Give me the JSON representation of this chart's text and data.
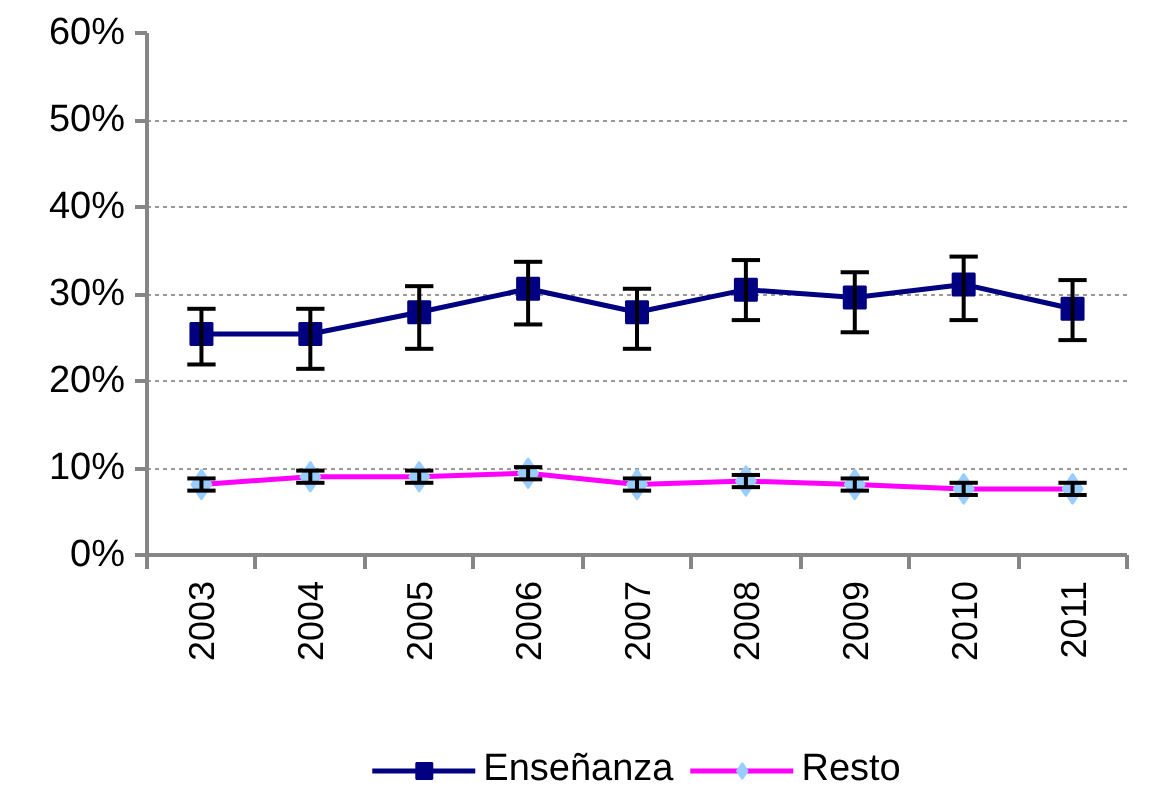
{
  "chart_data": {
    "type": "line",
    "categories": [
      "2003",
      "2004",
      "2005",
      "2006",
      "2007",
      "2008",
      "2009",
      "2010",
      "2011"
    ],
    "ylim": [
      0,
      60
    ],
    "yticks": [
      {
        "value": 0,
        "label": "0%"
      },
      {
        "value": 10,
        "label": "10%"
      },
      {
        "value": 20,
        "label": "20%"
      },
      {
        "value": 30,
        "label": "30%"
      },
      {
        "value": 40,
        "label": "40%"
      },
      {
        "value": 50,
        "label": "50%"
      },
      {
        "value": 60,
        "label": "60%"
      }
    ],
    "grid": "y",
    "legend": "bottom",
    "line_style": "solid",
    "series": [
      {
        "name": "Enseñanza",
        "color": "#000080",
        "marker": "square",
        "values": [
          25.4,
          25.4,
          27.9,
          30.6,
          27.9,
          30.5,
          29.6,
          31.1,
          28.3
        ],
        "errors": [
          [
            21.9,
            28.3
          ],
          [
            21.4,
            28.3
          ],
          [
            23.7,
            30.9
          ],
          [
            26.5,
            33.7
          ],
          [
            23.7,
            30.6
          ],
          [
            27.0,
            33.9
          ],
          [
            25.6,
            32.5
          ],
          [
            27.0,
            34.3
          ],
          [
            24.7,
            31.6
          ]
        ]
      },
      {
        "name": "Resto",
        "color": "#ff00ff",
        "colors": [
          "#99ccff",
          "#99ccff",
          "#99ccff",
          "#99ccff",
          "#99ccff",
          "#99ccff",
          "#99ccff",
          "#99ccff",
          "#99ccff"
        ],
        "marker": "diamond",
        "values": [
          8.1,
          9.0,
          9.0,
          9.4,
          8.1,
          8.5,
          8.1,
          7.6,
          7.6
        ],
        "errors": [
          0.7,
          0.7,
          0.7,
          0.7,
          0.7,
          0.7,
          0.7,
          0.7,
          0.7
        ]
      }
    ]
  }
}
